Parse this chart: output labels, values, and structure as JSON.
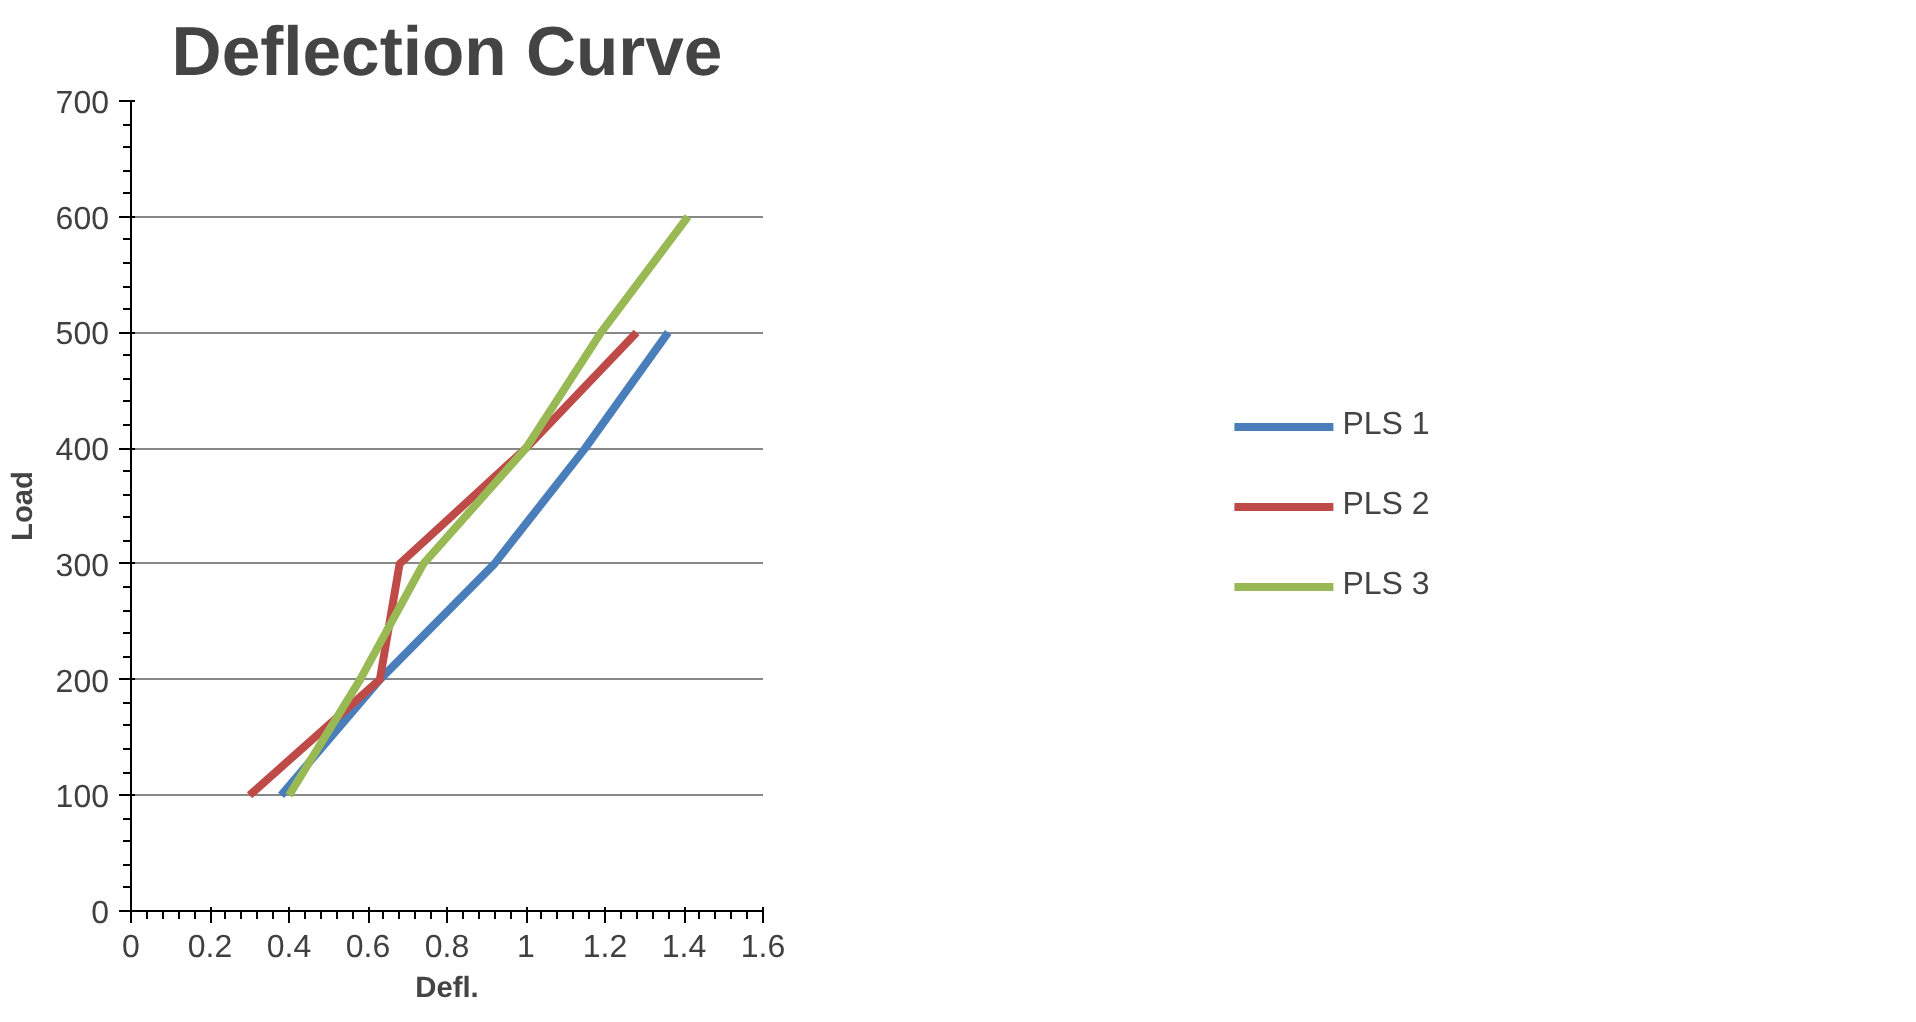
{
  "chart_data": {
    "type": "line",
    "title": "Deflection Curve",
    "xlabel": "Defl.",
    "ylabel": "Load",
    "xlim": [
      0,
      1.6
    ],
    "xticks": [
      0,
      0.2,
      0.4,
      0.6,
      0.8,
      1,
      1.2,
      1.4,
      1.6
    ],
    "ylim": [
      0,
      700
    ],
    "yticks": [
      0,
      100,
      200,
      300,
      400,
      500,
      600,
      700
    ],
    "grid": "y",
    "legend": "right",
    "marker": "none",
    "line_style": "solid",
    "series": [
      {
        "name": "PLS 1",
        "color": "#4a7ebb",
        "x": [
          0.38,
          0.63,
          0.92,
          1.15,
          1.36
        ],
        "values": [
          100,
          200,
          300,
          400,
          500
        ]
      },
      {
        "name": "PLS 2",
        "color": "#be4b48",
        "x": [
          0.3,
          0.63,
          0.68,
          1.0,
          1.28
        ],
        "values": [
          100,
          200,
          300,
          400,
          500
        ]
      },
      {
        "name": "PLS 3",
        "color": "#98b954",
        "x": [
          0.4,
          0.58,
          0.74,
          1.0,
          1.19,
          1.41
        ],
        "values": [
          100,
          200,
          300,
          400,
          500,
          600
        ]
      }
    ]
  }
}
